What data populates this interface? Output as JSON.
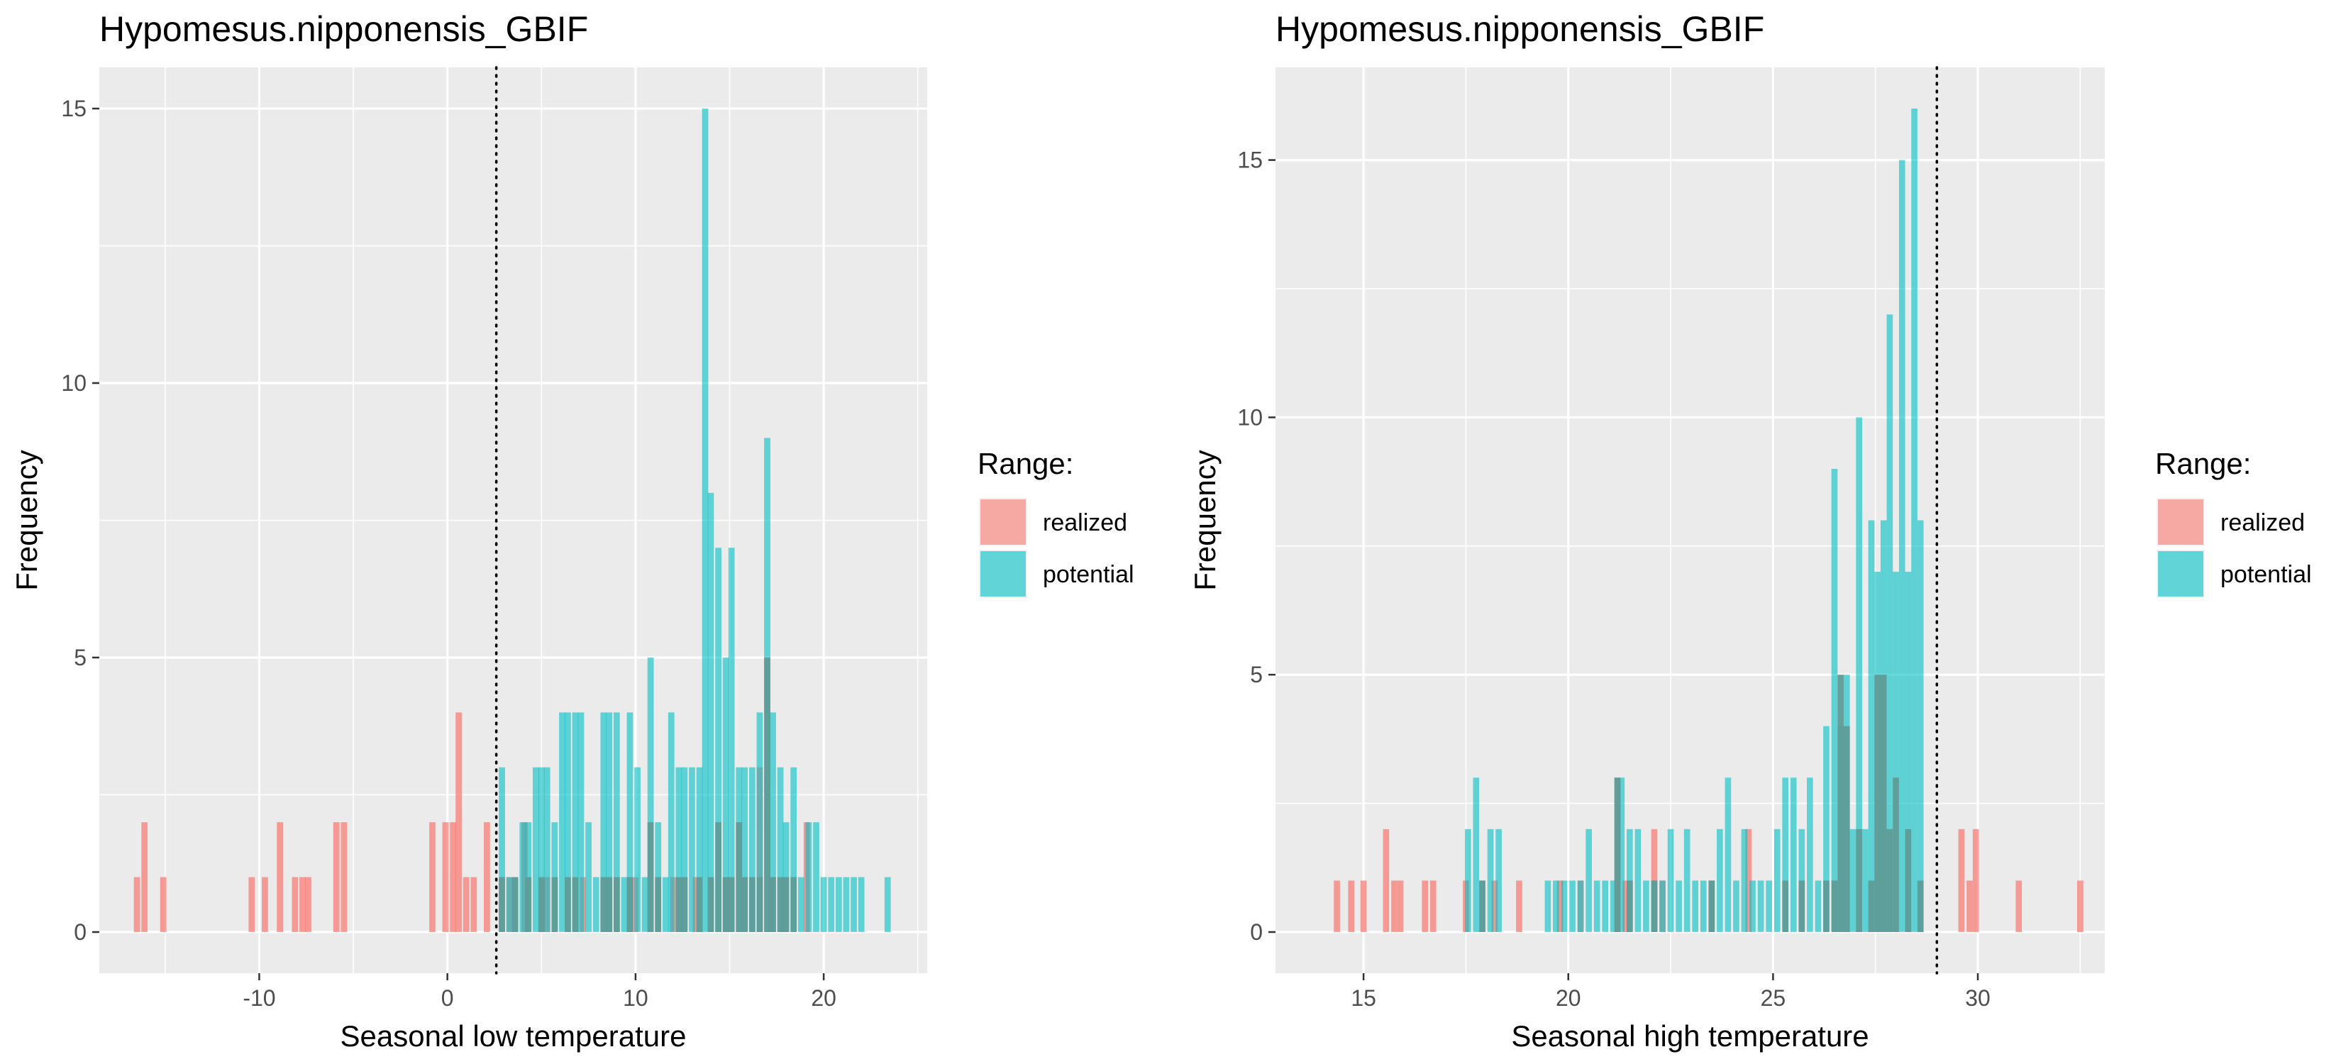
{
  "colors": {
    "realized": "#F8766D",
    "potential": "#00BFC4",
    "panel": "#EBEBEB",
    "grid": "#FFFFFF"
  },
  "chart_data": [
    {
      "type": "bar",
      "title": "Hypomesus.nipponensis_GBIF",
      "xlabel": "Seasonal low temperature",
      "ylabel": "Frequency",
      "xlim": [
        -18.5,
        25.5
      ],
      "ylim": [
        -0.75,
        15.75
      ],
      "xticks": [
        -10,
        0,
        10,
        20
      ],
      "xtick_labels": [
        "-10",
        "0",
        "10",
        "20"
      ],
      "yticks": [
        0,
        5,
        10,
        15
      ],
      "ytick_labels": [
        "0",
        "5",
        "10",
        "15"
      ],
      "binwidth": 0.33,
      "vline": 2.6,
      "legend": {
        "title": "Range:",
        "position": "right",
        "items": [
          "realized",
          "potential"
        ]
      },
      "series": [
        {
          "name": "realized",
          "bins": [
            [
              -16.5,
              1
            ],
            [
              -16.1,
              2
            ],
            [
              -15.1,
              1
            ],
            [
              -10.4,
              1
            ],
            [
              -9.7,
              1
            ],
            [
              -8.9,
              2
            ],
            [
              -8.1,
              1
            ],
            [
              -7.7,
              1
            ],
            [
              -7.4,
              1
            ],
            [
              -5.9,
              2
            ],
            [
              -5.5,
              2
            ],
            [
              -0.8,
              2
            ],
            [
              -0.1,
              2
            ],
            [
              0.3,
              2
            ],
            [
              0.6,
              4
            ],
            [
              1.0,
              1
            ],
            [
              1.4,
              1
            ],
            [
              2.1,
              2
            ],
            [
              3.3,
              1
            ],
            [
              4.1,
              2
            ],
            [
              5.3,
              1
            ],
            [
              7.2,
              1
            ],
            [
              10.0,
              1
            ],
            [
              12.0,
              1
            ],
            [
              13.2,
              1
            ],
            [
              14.8,
              1
            ],
            [
              16.6,
              3
            ],
            [
              17.2,
              1
            ],
            [
              17.9,
              1
            ],
            [
              19.1,
              2
            ]
          ]
        },
        {
          "name": "potential",
          "bins": [
            [
              2.9,
              3
            ],
            [
              3.3,
              1
            ],
            [
              3.6,
              1
            ],
            [
              4.0,
              2
            ],
            [
              4.3,
              2
            ],
            [
              4.7,
              3
            ],
            [
              5.0,
              3
            ],
            [
              5.3,
              3
            ],
            [
              5.7,
              2
            ],
            [
              6.1,
              4
            ],
            [
              6.4,
              4
            ],
            [
              6.8,
              4
            ],
            [
              7.1,
              4
            ],
            [
              7.5,
              2
            ],
            [
              7.9,
              1
            ],
            [
              8.3,
              4
            ],
            [
              8.6,
              4
            ],
            [
              9.0,
              4
            ],
            [
              9.4,
              1
            ],
            [
              9.7,
              4
            ],
            [
              10.1,
              3
            ],
            [
              10.5,
              1
            ],
            [
              10.8,
              5
            ],
            [
              11.2,
              2
            ],
            [
              11.6,
              1
            ],
            [
              11.9,
              4
            ],
            [
              12.3,
              3
            ],
            [
              12.6,
              3
            ],
            [
              13.0,
              3
            ],
            [
              13.4,
              3
            ],
            [
              13.7,
              15
            ],
            [
              14.0,
              8
            ],
            [
              14.4,
              7
            ],
            [
              14.8,
              5
            ],
            [
              15.1,
              7
            ],
            [
              15.5,
              3
            ],
            [
              15.8,
              3
            ],
            [
              16.2,
              3
            ],
            [
              16.6,
              4
            ],
            [
              17.0,
              9
            ],
            [
              17.3,
              4
            ],
            [
              17.7,
              3
            ],
            [
              18.0,
              2
            ],
            [
              18.4,
              3
            ],
            [
              18.8,
              1
            ],
            [
              19.2,
              2
            ],
            [
              19.6,
              2
            ],
            [
              20.0,
              1
            ],
            [
              20.4,
              1
            ],
            [
              20.8,
              1
            ],
            [
              21.2,
              1
            ],
            [
              21.6,
              1
            ],
            [
              22.0,
              1
            ],
            [
              23.4,
              1
            ]
          ]
        },
        {
          "name": "overlap",
          "bins": [
            [
              2.9,
              1
            ],
            [
              3.6,
              1
            ],
            [
              4.3,
              1
            ],
            [
              5.0,
              1
            ],
            [
              5.7,
              1
            ],
            [
              6.4,
              1
            ],
            [
              6.8,
              1
            ],
            [
              8.3,
              1
            ],
            [
              8.6,
              1
            ],
            [
              9.0,
              1
            ],
            [
              9.7,
              1
            ],
            [
              10.8,
              2
            ],
            [
              11.2,
              1
            ],
            [
              12.3,
              1
            ],
            [
              12.6,
              1
            ],
            [
              13.4,
              1
            ],
            [
              14.0,
              1
            ],
            [
              14.4,
              2
            ],
            [
              14.8,
              1
            ],
            [
              15.1,
              1
            ],
            [
              15.5,
              2
            ],
            [
              15.8,
              1
            ],
            [
              16.2,
              1
            ],
            [
              16.6,
              1
            ],
            [
              17.0,
              5
            ],
            [
              17.3,
              1
            ],
            [
              17.7,
              1
            ],
            [
              18.0,
              1
            ],
            [
              18.4,
              1
            ]
          ]
        }
      ]
    },
    {
      "type": "bar",
      "title": "Hypomesus.nipponensis_GBIF",
      "xlabel": "Seasonal high temperature",
      "ylabel": "Frequency",
      "xlim": [
        12.85,
        33.1
      ],
      "ylim": [
        -0.8,
        16.8
      ],
      "xticks": [
        15,
        20,
        25,
        30
      ],
      "xtick_labels": [
        "15",
        "20",
        "25",
        "30"
      ],
      "yticks": [
        0,
        5,
        10,
        15
      ],
      "ytick_labels": [
        "0",
        "5",
        "10",
        "15"
      ],
      "binwidth": 0.15,
      "vline": 29.0,
      "legend": {
        "title": "Range:",
        "position": "right",
        "items": [
          "realized",
          "potential"
        ]
      },
      "series": [
        {
          "name": "realized",
          "bins": [
            [
              14.35,
              1
            ],
            [
              14.7,
              1
            ],
            [
              15.0,
              1
            ],
            [
              15.55,
              2
            ],
            [
              15.75,
              1
            ],
            [
              15.9,
              1
            ],
            [
              16.5,
              1
            ],
            [
              16.7,
              1
            ],
            [
              17.5,
              1
            ],
            [
              18.2,
              1
            ],
            [
              18.8,
              1
            ],
            [
              19.8,
              1
            ],
            [
              20.3,
              1
            ],
            [
              21.2,
              3
            ],
            [
              21.4,
              1
            ],
            [
              22.1,
              2
            ],
            [
              22.3,
              1
            ],
            [
              23.5,
              1
            ],
            [
              24.4,
              2
            ],
            [
              29.6,
              2
            ],
            [
              29.8,
              1
            ],
            [
              29.95,
              2
            ],
            [
              31.0,
              1
            ],
            [
              32.5,
              1
            ]
          ]
        },
        {
          "name": "potential",
          "bins": [
            [
              17.55,
              2
            ],
            [
              17.75,
              3
            ],
            [
              17.9,
              1
            ],
            [
              18.1,
              2
            ],
            [
              18.3,
              2
            ],
            [
              19.5,
              1
            ],
            [
              19.7,
              1
            ],
            [
              19.9,
              1
            ],
            [
              20.1,
              1
            ],
            [
              20.3,
              1
            ],
            [
              20.5,
              2
            ],
            [
              20.7,
              1
            ],
            [
              20.9,
              1
            ],
            [
              21.1,
              1
            ],
            [
              21.3,
              3
            ],
            [
              21.5,
              2
            ],
            [
              21.7,
              2
            ],
            [
              21.9,
              1
            ],
            [
              22.1,
              1
            ],
            [
              22.3,
              1
            ],
            [
              22.5,
              2
            ],
            [
              22.7,
              1
            ],
            [
              22.9,
              2
            ],
            [
              23.1,
              1
            ],
            [
              23.3,
              1
            ],
            [
              23.5,
              1
            ],
            [
              23.7,
              2
            ],
            [
              23.9,
              3
            ],
            [
              24.1,
              1
            ],
            [
              24.3,
              2
            ],
            [
              24.5,
              1
            ],
            [
              24.7,
              1
            ],
            [
              24.9,
              1
            ],
            [
              25.1,
              2
            ],
            [
              25.3,
              3
            ],
            [
              25.5,
              3
            ],
            [
              25.7,
              2
            ],
            [
              25.9,
              3
            ],
            [
              26.1,
              1
            ],
            [
              26.3,
              4
            ],
            [
              26.5,
              9
            ],
            [
              26.65,
              4
            ],
            [
              26.8,
              5
            ],
            [
              26.95,
              2
            ],
            [
              27.1,
              10
            ],
            [
              27.25,
              2
            ],
            [
              27.4,
              8
            ],
            [
              27.55,
              7
            ],
            [
              27.7,
              8
            ],
            [
              27.85,
              12
            ],
            [
              28.0,
              7
            ],
            [
              28.15,
              15
            ],
            [
              28.3,
              7
            ],
            [
              28.45,
              16
            ],
            [
              28.6,
              8
            ]
          ]
        },
        {
          "name": "overlap",
          "bins": [
            [
              17.9,
              1
            ],
            [
              21.2,
              3
            ],
            [
              21.5,
              1
            ],
            [
              22.1,
              1
            ],
            [
              23.5,
              1
            ],
            [
              25.3,
              1
            ],
            [
              25.7,
              1
            ],
            [
              26.3,
              1
            ],
            [
              26.5,
              1
            ],
            [
              26.65,
              5
            ],
            [
              26.8,
              4
            ],
            [
              27.1,
              2
            ],
            [
              27.4,
              1
            ],
            [
              27.55,
              5
            ],
            [
              27.7,
              5
            ],
            [
              27.85,
              2
            ],
            [
              28.0,
              3
            ],
            [
              28.3,
              2
            ],
            [
              28.6,
              1
            ]
          ]
        }
      ]
    }
  ]
}
